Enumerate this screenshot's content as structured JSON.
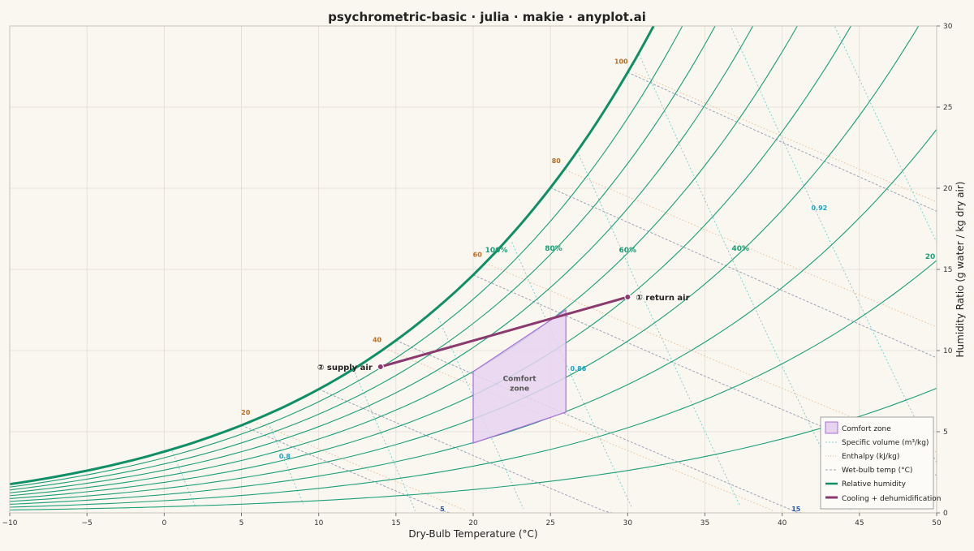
{
  "chart_data": {
    "type": "line",
    "title": "psychrometric-basic · julia · makie · anyplot.ai",
    "xlabel": "Dry-Bulb Temperature (°C)",
    "ylabel": "Humidity Ratio (g water / kg dry air)",
    "xlim": [
      -10,
      50
    ],
    "ylim": [
      0,
      30
    ],
    "x_ticks": [
      -10,
      -5,
      0,
      5,
      10,
      15,
      20,
      25,
      30,
      35,
      40,
      45,
      50
    ],
    "x_tick_labels": [
      "−10",
      "−5",
      "0",
      "5",
      "10",
      "15",
      "20",
      "25",
      "30",
      "35",
      "40",
      "45",
      "50"
    ],
    "y_ticks": [
      0,
      5,
      10,
      15,
      20,
      25,
      30
    ],
    "y_tick_labels": [
      "0",
      "5",
      "10",
      "15",
      "20",
      "25",
      "30"
    ],
    "y_axis_side": "right",
    "grid": true,
    "pressure_kpa": 101.325,
    "relative_humidity_curves": [
      10,
      20,
      30,
      40,
      50,
      60,
      70,
      80,
      90,
      100
    ],
    "rh_labels": [
      {
        "text": "100%",
        "t": 21.5,
        "w": 16.2
      },
      {
        "text": "80%",
        "t": 25.2,
        "w": 16.3
      },
      {
        "text": "60%",
        "t": 30.0,
        "w": 16.2
      },
      {
        "text": "40%",
        "t": 37.3,
        "w": 16.3
      },
      {
        "text": "20",
        "t": 50.0,
        "w": 15.8
      }
    ],
    "enthalpy_lines_kj_per_kg": [
      20,
      40,
      60,
      80,
      100
    ],
    "enthalpy_labels": [
      "20",
      "40",
      "60",
      "80",
      "100"
    ],
    "wet_bulb_lines_c": [
      5,
      10,
      15,
      20,
      25,
      30
    ],
    "wet_bulb_labels": [
      {
        "text": "5",
        "t": 18.0,
        "w": 0.25
      },
      {
        "text": "15",
        "t": 40.9,
        "w": 0.25
      }
    ],
    "specific_volume_lines_m3_per_kg": [
      0.78,
      0.8,
      0.82,
      0.84,
      0.86,
      0.88,
      0.9,
      0.92,
      0.94
    ],
    "specific_volume_labels": [
      {
        "text": "0.8",
        "t": 7.8,
        "w": 3.5
      },
      {
        "text": "0.86",
        "t": 26.8,
        "w": 8.9
      },
      {
        "text": "0.92",
        "t": 42.4,
        "w": 18.8
      }
    ],
    "comfort_zone": {
      "label_line1": "Comfort",
      "label_line2": "zone",
      "polygon": [
        [
          20,
          4.3
        ],
        [
          26,
          6.2
        ],
        [
          26,
          12.5
        ],
        [
          20,
          8.7
        ]
      ]
    },
    "process": {
      "name": "Cooling + dehumidification",
      "points": [
        {
          "label": "① return air",
          "t": 30,
          "w": 13.3
        },
        {
          "label": "② supply air",
          "t": 14,
          "w": 9.0
        }
      ]
    },
    "legend": {
      "placement": "bottom-right",
      "entries": [
        "Comfort zone",
        "Specific volume (m³/kg)",
        "Enthalpy (kJ/kg)",
        "Wet-bulb temp (°C)",
        "Relative humidity",
        "Cooling + dehumidification"
      ]
    },
    "colors": {
      "background": "#faf7f1",
      "grid": "#e2ddd3",
      "rh": "#1a9e77",
      "rh_saturation": "#0f8f66",
      "enthalpy": "#e8b98a",
      "enthalpy_label": "#b86e22",
      "wet_bulb": "#9aa3b8",
      "wet_bulb_label": "#2f55a4",
      "volume": "#7fd0cf",
      "volume_label": "#16a3c9",
      "comfort_fill": "#e6d3f0",
      "comfort_edge": "#a86ed8",
      "process": "#8a3a6e"
    }
  }
}
